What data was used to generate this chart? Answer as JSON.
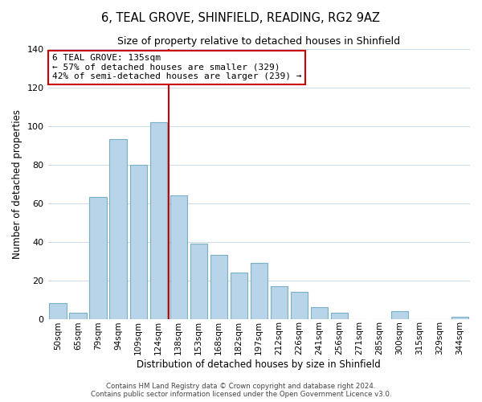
{
  "title": "6, TEAL GROVE, SHINFIELD, READING, RG2 9AZ",
  "subtitle": "Size of property relative to detached houses in Shinfield",
  "xlabel": "Distribution of detached houses by size in Shinfield",
  "ylabel": "Number of detached properties",
  "bar_labels": [
    "50sqm",
    "65sqm",
    "79sqm",
    "94sqm",
    "109sqm",
    "124sqm",
    "138sqm",
    "153sqm",
    "168sqm",
    "182sqm",
    "197sqm",
    "212sqm",
    "226sqm",
    "241sqm",
    "256sqm",
    "271sqm",
    "285sqm",
    "300sqm",
    "315sqm",
    "329sqm",
    "344sqm"
  ],
  "bar_values": [
    8,
    3,
    63,
    93,
    80,
    102,
    64,
    39,
    33,
    24,
    29,
    17,
    14,
    6,
    3,
    0,
    0,
    4,
    0,
    0,
    1
  ],
  "bar_color": "#b8d4e8",
  "bar_edge_color": "#7aafc8",
  "vline_x_index": 5.5,
  "vline_color": "#cc0000",
  "annotation_title": "6 TEAL GROVE: 135sqm",
  "annotation_line1": "← 57% of detached houses are smaller (329)",
  "annotation_line2": "42% of semi-detached houses are larger (239) →",
  "annotation_box_color": "#ffffff",
  "annotation_box_edge": "#cc0000",
  "ylim": [
    0,
    140
  ],
  "yticks": [
    0,
    20,
    40,
    60,
    80,
    100,
    120,
    140
  ],
  "footer1": "Contains HM Land Registry data © Crown copyright and database right 2024.",
  "footer2": "Contains public sector information licensed under the Open Government Licence v3.0."
}
